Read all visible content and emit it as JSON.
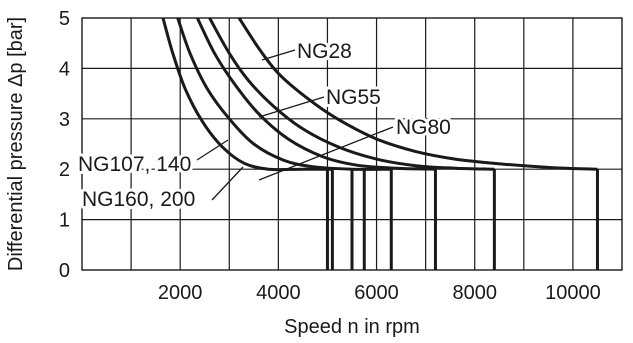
{
  "chart_data": {
    "type": "line",
    "xlabel": "Speed n in rpm",
    "ylabel": "Differential pressure Δp [bar]",
    "xlim": [
      0,
      11000
    ],
    "ylim": [
      0,
      5
    ],
    "grid": true,
    "x_ticks": [
      2000,
      4000,
      6000,
      8000,
      10000
    ],
    "y_ticks": [
      0,
      1,
      2,
      3,
      4,
      5
    ],
    "x_tick_labels": [
      "2000",
      "4000",
      "6000",
      "8000",
      "10000"
    ],
    "y_tick_labels": [
      "0",
      "1",
      "2",
      "3",
      "4",
      "5"
    ],
    "series": [
      {
        "name": "NG28",
        "max_speed": 10500,
        "points": [
          [
            3200,
            5.0
          ],
          [
            3600,
            4.4
          ],
          [
            4000,
            3.9
          ],
          [
            4600,
            3.4
          ],
          [
            5200,
            3.0
          ],
          [
            6000,
            2.6
          ],
          [
            6800,
            2.35
          ],
          [
            7600,
            2.2
          ],
          [
            8600,
            2.1
          ],
          [
            9600,
            2.03
          ],
          [
            10500,
            2.0
          ]
        ]
      },
      {
        "name": "NG55",
        "max_speed": 8400,
        "points": [
          [
            2600,
            5.0
          ],
          [
            3000,
            4.3
          ],
          [
            3400,
            3.75
          ],
          [
            3900,
            3.25
          ],
          [
            4500,
            2.8
          ],
          [
            5200,
            2.45
          ],
          [
            6000,
            2.2
          ],
          [
            6800,
            2.07
          ],
          [
            7600,
            2.02
          ],
          [
            8400,
            2.0
          ]
        ]
      },
      {
        "name": "NG80",
        "max_speed": 7200,
        "points": [
          [
            2350,
            5.0
          ],
          [
            2700,
            4.3
          ],
          [
            3100,
            3.7
          ],
          [
            3600,
            3.1
          ],
          [
            4200,
            2.6
          ],
          [
            4900,
            2.25
          ],
          [
            5600,
            2.08
          ],
          [
            6400,
            2.02
          ],
          [
            7200,
            2.0
          ]
        ]
      },
      {
        "name": "NG107, 140",
        "max_speed": 6300,
        "points": [
          [
            1950,
            5.0
          ],
          [
            2200,
            4.3
          ],
          [
            2550,
            3.6
          ],
          [
            3000,
            3.0
          ],
          [
            3500,
            2.5
          ],
          [
            4100,
            2.18
          ],
          [
            4700,
            2.05
          ],
          [
            5500,
            2.0
          ],
          [
            6300,
            2.0
          ]
        ]
      },
      {
        "name": "NG160, 200",
        "max_speed": 5100,
        "points": [
          [
            1650,
            5.0
          ],
          [
            1850,
            4.3
          ],
          [
            2100,
            3.6
          ],
          [
            2450,
            2.95
          ],
          [
            2850,
            2.45
          ],
          [
            3300,
            2.12
          ],
          [
            3800,
            2.0
          ],
          [
            4500,
            2.0
          ],
          [
            5100,
            2.0
          ]
        ]
      }
    ],
    "vertical_drops": [
      5000,
      5100,
      5500,
      5750,
      6300,
      7200,
      8400,
      10500
    ]
  }
}
